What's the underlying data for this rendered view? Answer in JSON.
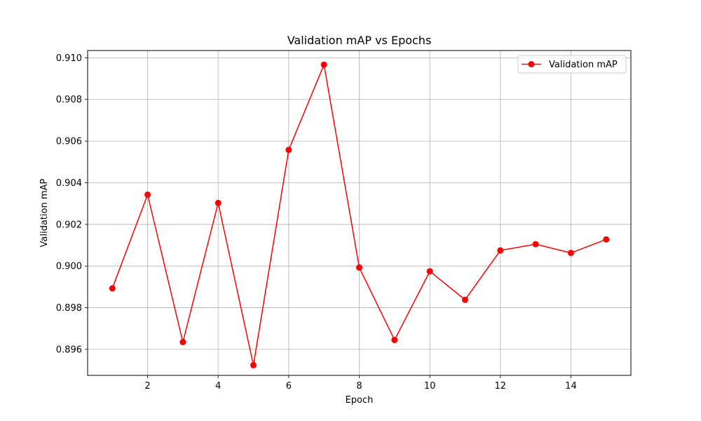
{
  "chart_data": {
    "type": "line",
    "title": "Validation mAP vs Epochs",
    "xlabel": "Epoch",
    "ylabel": "Validation mAP",
    "xlim": [
      0.3,
      15.7
    ],
    "ylim": [
      0.89475,
      0.91035
    ],
    "xticks": [
      2,
      4,
      6,
      8,
      10,
      12,
      14
    ],
    "xtick_labels": [
      "2",
      "4",
      "6",
      "8",
      "10",
      "12",
      "14"
    ],
    "yticks": [
      0.896,
      0.898,
      0.9,
      0.902,
      0.904,
      0.906,
      0.908,
      0.91
    ],
    "ytick_labels": [
      "0.896",
      "0.898",
      "0.900",
      "0.902",
      "0.904",
      "0.906",
      "0.908",
      "0.910"
    ],
    "grid": true,
    "legend_position": "top-right",
    "series": [
      {
        "name": "Validation mAP",
        "color": "#ff0000",
        "marker": "circle",
        "x": [
          1,
          2,
          3,
          4,
          5,
          6,
          7,
          8,
          9,
          10,
          11,
          12,
          13,
          14,
          15
        ],
        "y": [
          0.89893,
          0.90343,
          0.89635,
          0.90303,
          0.89524,
          0.90558,
          0.90967,
          0.89993,
          0.89645,
          0.89975,
          0.89838,
          0.90075,
          0.90105,
          0.90063,
          0.90128
        ]
      }
    ]
  }
}
